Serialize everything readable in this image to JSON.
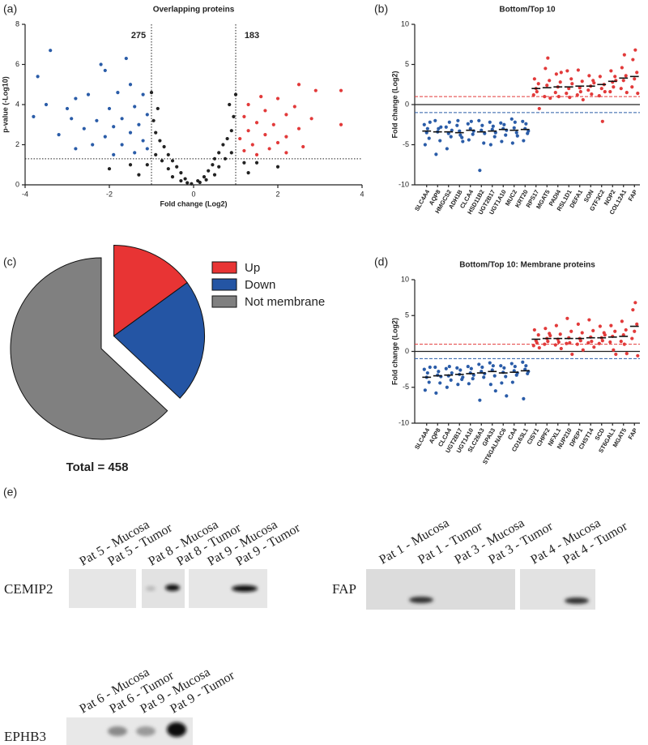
{
  "panel_labels": [
    "(a)",
    "(b)",
    "(c)",
    "(d)",
    "(e)"
  ],
  "chart_data": [
    {
      "type": "scatter",
      "title": "Overlapping proteins",
      "x_label": "Fold change (Log2)",
      "y_label": "p-value (-Log10)",
      "xlim": [
        -4,
        4
      ],
      "ylim": [
        0,
        8
      ],
      "xticks": [
        -4,
        -2,
        0,
        2,
        4
      ],
      "yticks": [
        0,
        2,
        4,
        6,
        8
      ],
      "thresholds": {
        "x": [
          -1,
          1
        ],
        "y": 1.3
      },
      "annotations": [
        {
          "text": "275",
          "color": "#2a5ca8"
        },
        {
          "text": "183",
          "color": "#e23a3a"
        }
      ],
      "series": [
        {
          "color": "#2a5ca8",
          "x": [
            -3.4,
            -3.7,
            -2.2,
            -2.1,
            -1.6,
            -1.5,
            -2.8,
            -3.5,
            -2.5,
            -1.8,
            -1.2,
            -3.0,
            -2.0,
            -1.4,
            -2.9,
            -3.8,
            -2.3,
            -1.7,
            -1.1,
            -2.6,
            -1.9,
            -1.3,
            -3.2,
            -2.1,
            -1.5,
            -1.2,
            -2.4,
            -1.7,
            -1.1,
            -2.8,
            -1.4,
            -1.9
          ],
          "values": [
            6.7,
            5.4,
            6.0,
            5.7,
            6.3,
            5.0,
            4.3,
            4.0,
            4.5,
            4.6,
            4.5,
            3.8,
            3.8,
            3.9,
            3.3,
            3.4,
            3.2,
            3.3,
            3.5,
            2.8,
            2.9,
            3.0,
            2.5,
            2.4,
            2.6,
            2.2,
            2.0,
            2.0,
            1.8,
            1.8,
            1.6,
            1.5
          ]
        },
        {
          "color": "#222222",
          "x": [
            -0.05,
            0.1,
            -0.2,
            0.25,
            -0.3,
            0.35,
            -0.4,
            0.45,
            -0.5,
            0.5,
            -0.6,
            0.6,
            -0.7,
            0.7,
            -0.8,
            0.8,
            -0.9,
            0.9,
            -0.95,
            0.95,
            -0.85,
            0.85,
            -1.0,
            1.0,
            -0.6,
            0.6,
            -0.3,
            0.3,
            -0.75,
            0.75,
            -1.5,
            1.5,
            -2.0,
            2.0,
            -1.3,
            1.3,
            -0.9,
            0.9,
            -0.5,
            0.5,
            -1.1,
            1.2,
            -0.15,
            0.15
          ],
          "values": [
            0.05,
            0.2,
            0.3,
            0.4,
            0.6,
            0.7,
            0.9,
            1.0,
            1.2,
            1.3,
            1.5,
            1.6,
            1.9,
            2.0,
            2.2,
            2.3,
            2.6,
            2.7,
            3.2,
            3.4,
            3.8,
            4.0,
            4.6,
            4.5,
            0.8,
            0.9,
            0.2,
            0.25,
            1.2,
            1.3,
            1.0,
            1.1,
            0.8,
            0.9,
            0.5,
            0.6,
            1.5,
            1.6,
            0.4,
            0.5,
            1.0,
            1.1,
            0.1,
            0.12
          ]
        },
        {
          "color": "#e23a3a",
          "x": [
            2.5,
            3.5,
            2.9,
            1.6,
            2.0,
            1.3,
            2.4,
            1.7,
            2.2,
            1.2,
            2.8,
            1.5,
            1.9,
            3.5,
            2.5,
            1.3,
            1.7,
            2.2,
            1.1,
            2.0,
            1.4,
            1.8,
            1.2,
            2.6,
            1.5,
            2.2
          ],
          "values": [
            5.0,
            4.7,
            4.7,
            4.4,
            4.3,
            4.0,
            3.9,
            3.7,
            3.5,
            3.4,
            3.3,
            3.1,
            3.0,
            3.0,
            2.8,
            2.7,
            2.5,
            2.4,
            2.3,
            2.1,
            2.0,
            1.8,
            1.7,
            1.9,
            1.5,
            1.6
          ]
        }
      ]
    },
    {
      "type": "dotplot",
      "title": "Bottom/Top 10",
      "y_label": "Fold change (Log2)",
      "ylim": [
        -10,
        10
      ],
      "yticks": [
        -10,
        -5,
        0,
        5,
        10
      ],
      "reference_lines": [
        {
          "value": 0,
          "color": "#222222",
          "dashed": false
        },
        {
          "value": 1,
          "color": "#e23a3a",
          "dashed": true
        },
        {
          "value": -1,
          "color": "#2a5ca8",
          "dashed": true
        }
      ],
      "categories": [
        "SLC4A4",
        "AQP8",
        "HMGCS2",
        "ADH1B",
        "CLCA4",
        "HSD11B2",
        "UGT2B17",
        "UGT1A10",
        "MUC2",
        "KRT20",
        "RPS17",
        "MGAT5",
        "PADI4",
        "RSL1D1",
        "DEFA1",
        "SON",
        "GTF3C2",
        "NOP2",
        "COL12A1",
        "FAP"
      ],
      "series": [
        {
          "color": "#2a5ca8",
          "values": [
            [
              -2.5,
              -3.5,
              -4.2,
              -5.0,
              -3.0,
              -2.2
            ],
            [
              -2.0,
              -3.4,
              -4.5,
              -6.2,
              -3.0,
              -2.8
            ],
            [
              -2.8,
              -3.6,
              -4.0,
              -5.5,
              -2.2,
              -3.2
            ],
            [
              -2.6,
              -3.3,
              -4.1,
              -2.0,
              -3.8,
              -4.6
            ],
            [
              -2.4,
              -3.0,
              -3.7,
              -4.4,
              -2.1,
              -3.3
            ],
            [
              -2.0,
              -3.2,
              -4.8,
              -8.2,
              -2.6,
              -3.6
            ],
            [
              -2.2,
              -3.1,
              -4.0,
              -5.0,
              -2.7,
              -3.5
            ],
            [
              -2.3,
              -3.0,
              -3.8,
              -4.6,
              -2.5,
              -3.2
            ],
            [
              -1.8,
              -2.9,
              -3.5,
              -4.8,
              -2.2,
              -3.9
            ],
            [
              -2.1,
              -3.0,
              -3.6,
              -4.5,
              -2.4,
              -3.3
            ],
            null,
            null,
            null,
            null,
            null,
            null,
            null,
            null,
            null,
            null
          ],
          "medians": [
            -3.3,
            -3.4,
            -3.4,
            -3.5,
            -3.2,
            -3.4,
            -3.3,
            -3.1,
            -3.2,
            -3.1,
            null,
            null,
            null,
            null,
            null,
            null,
            null,
            null,
            null,
            null
          ]
        },
        {
          "color": "#e23a3a",
          "values": [
            null,
            null,
            null,
            null,
            null,
            null,
            null,
            null,
            null,
            null,
            [
              1.2,
              2.0,
              2.6,
              3.2,
              1.6,
              -0.5
            ],
            [
              1.0,
              2.4,
              3.0,
              4.5,
              5.8,
              0.8
            ],
            [
              1.5,
              2.2,
              2.8,
              3.8,
              1.0,
              4.0
            ],
            [
              1.4,
              2.0,
              3.2,
              4.2,
              0.9,
              2.6
            ],
            [
              1.2,
              2.1,
              2.9,
              4.3,
              1.6,
              0.6
            ],
            [
              1.8,
              2.3,
              3.0,
              3.6,
              1.3,
              2.7
            ],
            [
              1.1,
              2.0,
              2.5,
              3.5,
              -2.1,
              1.6
            ],
            [
              1.6,
              2.8,
              3.5,
              4.2,
              2.2,
              3.0
            ],
            [
              2.0,
              3.0,
              3.6,
              4.6,
              6.2,
              1.5
            ],
            [
              2.2,
              3.2,
              4.0,
              5.6,
              6.8,
              1.4
            ]
          ],
          "medians": [
            null,
            null,
            null,
            null,
            null,
            null,
            null,
            null,
            null,
            null,
            2.0,
            2.1,
            2.2,
            2.2,
            2.3,
            2.3,
            2.5,
            2.9,
            3.3,
            3.5
          ]
        }
      ]
    },
    {
      "type": "pie",
      "categories": [
        "Up",
        "Down",
        "Not membrane"
      ],
      "values": [
        15,
        22,
        63
      ],
      "colors": [
        "#e83434",
        "#2455a4",
        "#808080"
      ],
      "explode": [
        true,
        true,
        false
      ],
      "total_label": "Total = 458"
    },
    {
      "type": "dotplot",
      "title": "Bottom/Top 10: Membrane proteins",
      "y_label": "Fold change (Log2)",
      "ylim": [
        -10,
        10
      ],
      "yticks": [
        -10,
        -5,
        0,
        5,
        10
      ],
      "reference_lines": [
        {
          "value": 0,
          "color": "#222222",
          "dashed": false
        },
        {
          "value": 1,
          "color": "#e23a3a",
          "dashed": true
        },
        {
          "value": -1,
          "color": "#2a5ca8",
          "dashed": true
        }
      ],
      "categories": [
        "SLC4A4",
        "AQP8",
        "CLCA4",
        "UGT2B17",
        "UGT1A10",
        "SLC26A3",
        "GPA33",
        "ST6GALNAC6",
        "CA4",
        "CD163L1",
        "CISY1",
        "CHPF2",
        "NFXL1",
        "NUP210",
        "DPEP1",
        "CHST14",
        "SCD",
        "ST6GAL1",
        "MGAT5",
        "FAP"
      ],
      "series": [
        {
          "color": "#2a5ca8",
          "values": [
            [
              -2.5,
              -3.6,
              -4.3,
              -5.4,
              -3.0,
              -2.2
            ],
            [
              -2.2,
              -3.3,
              -4.4,
              -5.8,
              -2.8,
              -3.5
            ],
            [
              -2.4,
              -3.4,
              -4.0,
              -5.0,
              -2.1,
              -3.0
            ],
            [
              -2.3,
              -3.2,
              -3.9,
              -4.6,
              -2.6,
              -3.6
            ],
            [
              -2.1,
              -3.0,
              -3.8,
              -4.5,
              -2.4,
              -3.3
            ],
            [
              -1.8,
              -2.8,
              -3.6,
              -6.8,
              -2.2,
              -3.1
            ],
            [
              -1.6,
              -2.6,
              -3.4,
              -4.6,
              -2.0,
              -5.5
            ],
            [
              -2.0,
              -2.9,
              -3.5,
              -4.4,
              -2.3,
              -6.2
            ],
            [
              -1.7,
              -2.7,
              -3.3,
              -4.3,
              -2.1,
              -3.0
            ],
            [
              -1.5,
              -2.5,
              -3.1,
              -6.6,
              -2.0,
              -2.8
            ],
            null,
            null,
            null,
            null,
            null,
            null,
            null,
            null,
            null,
            null
          ],
          "medians": [
            -3.6,
            -3.4,
            -3.3,
            -3.2,
            -3.1,
            -3.0,
            -2.8,
            -3.0,
            -2.9,
            -2.7,
            null,
            null,
            null,
            null,
            null,
            null,
            null,
            null,
            null,
            null
          ]
        },
        {
          "color": "#e23a3a",
          "values": [
            null,
            null,
            null,
            null,
            null,
            null,
            null,
            null,
            null,
            null,
            [
              0.8,
              1.5,
              2.3,
              3.0,
              1.2,
              0.5
            ],
            [
              1.0,
              1.8,
              2.5,
              3.2,
              1.4,
              2.2
            ],
            [
              0.9,
              1.7,
              2.4,
              3.6,
              1.3,
              0.4
            ],
            [
              1.1,
              1.9,
              2.8,
              4.6,
              1.2,
              -0.4
            ],
            [
              1.0,
              1.8,
              2.6,
              3.8,
              1.5,
              0.2
            ],
            [
              1.2,
              2.0,
              2.9,
              4.4,
              1.4,
              0.6
            ],
            [
              1.1,
              1.9,
              2.6,
              3.5,
              1.5,
              2.3
            ],
            [
              1.3,
              2.1,
              2.8,
              3.6,
              0.2,
              -0.4
            ],
            [
              1.4,
              2.3,
              3.0,
              4.2,
              1.0,
              -0.3
            ],
            [
              1.8,
              2.8,
              3.8,
              5.8,
              6.8,
              -0.6
            ]
          ],
          "medians": [
            null,
            null,
            null,
            null,
            null,
            null,
            null,
            null,
            null,
            null,
            1.7,
            1.8,
            1.8,
            1.8,
            1.8,
            1.9,
            1.9,
            2.0,
            2.1,
            3.5
          ]
        }
      ]
    }
  ],
  "blots": [
    {
      "protein": "CEMIP2",
      "lanes": [
        "Pat 5 - Mucosa",
        "Pat 5 - Tumor",
        "Pat 8 - Mucosa",
        "Pat 8 - Tumor",
        "Pat 9 - Mucosa",
        "Pat 9 - Tumor"
      ]
    },
    {
      "protein": "FAP",
      "lanes": [
        "Pat 1 - Mucosa",
        "Pat 1 - Tumor",
        "Pat 3 - Mucosa",
        "Pat 3 - Tumor",
        "Pat 4 - Mucosa",
        "Pat 4 - Tumor"
      ]
    },
    {
      "protein": "EPHB3",
      "lanes": [
        "Pat 6 - Mucosa",
        "Pat 6 - Tumor",
        "Pat 9 - Mucosa",
        "Pat 9 - Tumor"
      ]
    }
  ]
}
